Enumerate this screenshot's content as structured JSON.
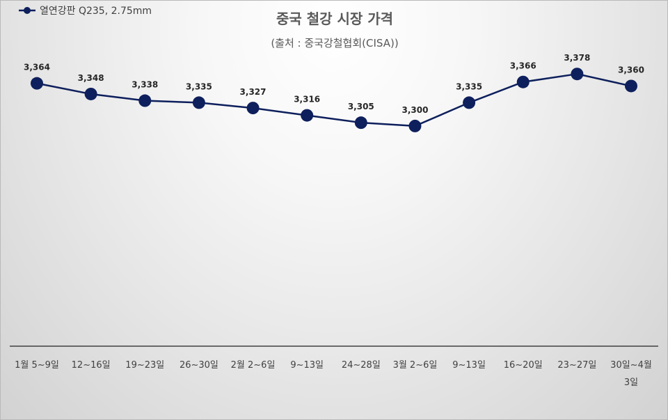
{
  "chart_data": {
    "type": "line",
    "title": "중국 철강 시장 가격",
    "subtitle": "(출처 : 중국강철협회(CISA))",
    "categories": [
      "1월 5~9일",
      "12~16일",
      "19~23일",
      "26~30일",
      "2월 2~6일",
      "9~13일",
      "24~28일",
      "3월 2~6일",
      "9~13일",
      "16~20일",
      "23~27일",
      "30일~4월 3일"
    ],
    "tick_lines": [
      [
        "1월 5~9일"
      ],
      [
        "12~16일"
      ],
      [
        "19~23일"
      ],
      [
        "26~30일"
      ],
      [
        "2월 2~6일"
      ],
      [
        "9~13일"
      ],
      [
        "24~28일"
      ],
      [
        "3월 2~6일"
      ],
      [
        "9~13일"
      ],
      [
        "16~20일"
      ],
      [
        "23~27일"
      ],
      [
        "30일~4월",
        "3일"
      ]
    ],
    "series": [
      {
        "name": "열연강판 Q235, 2.75mm",
        "values": [
          3364,
          3348,
          3338,
          3335,
          3327,
          3316,
          3305,
          3300,
          3335,
          3366,
          3378,
          3360
        ],
        "value_labels": [
          "3,364",
          "3,348",
          "3,338",
          "3,335",
          "3,327",
          "3,316",
          "3,305",
          "3,300",
          "3,335",
          "3,366",
          "3,378",
          "3,360"
        ],
        "color": "#0d1f5c",
        "marker": "circle"
      }
    ],
    "legend_position": "top-left",
    "grid": false,
    "y_axis_visible": false,
    "ylim": [
      2970,
      3420
    ]
  }
}
